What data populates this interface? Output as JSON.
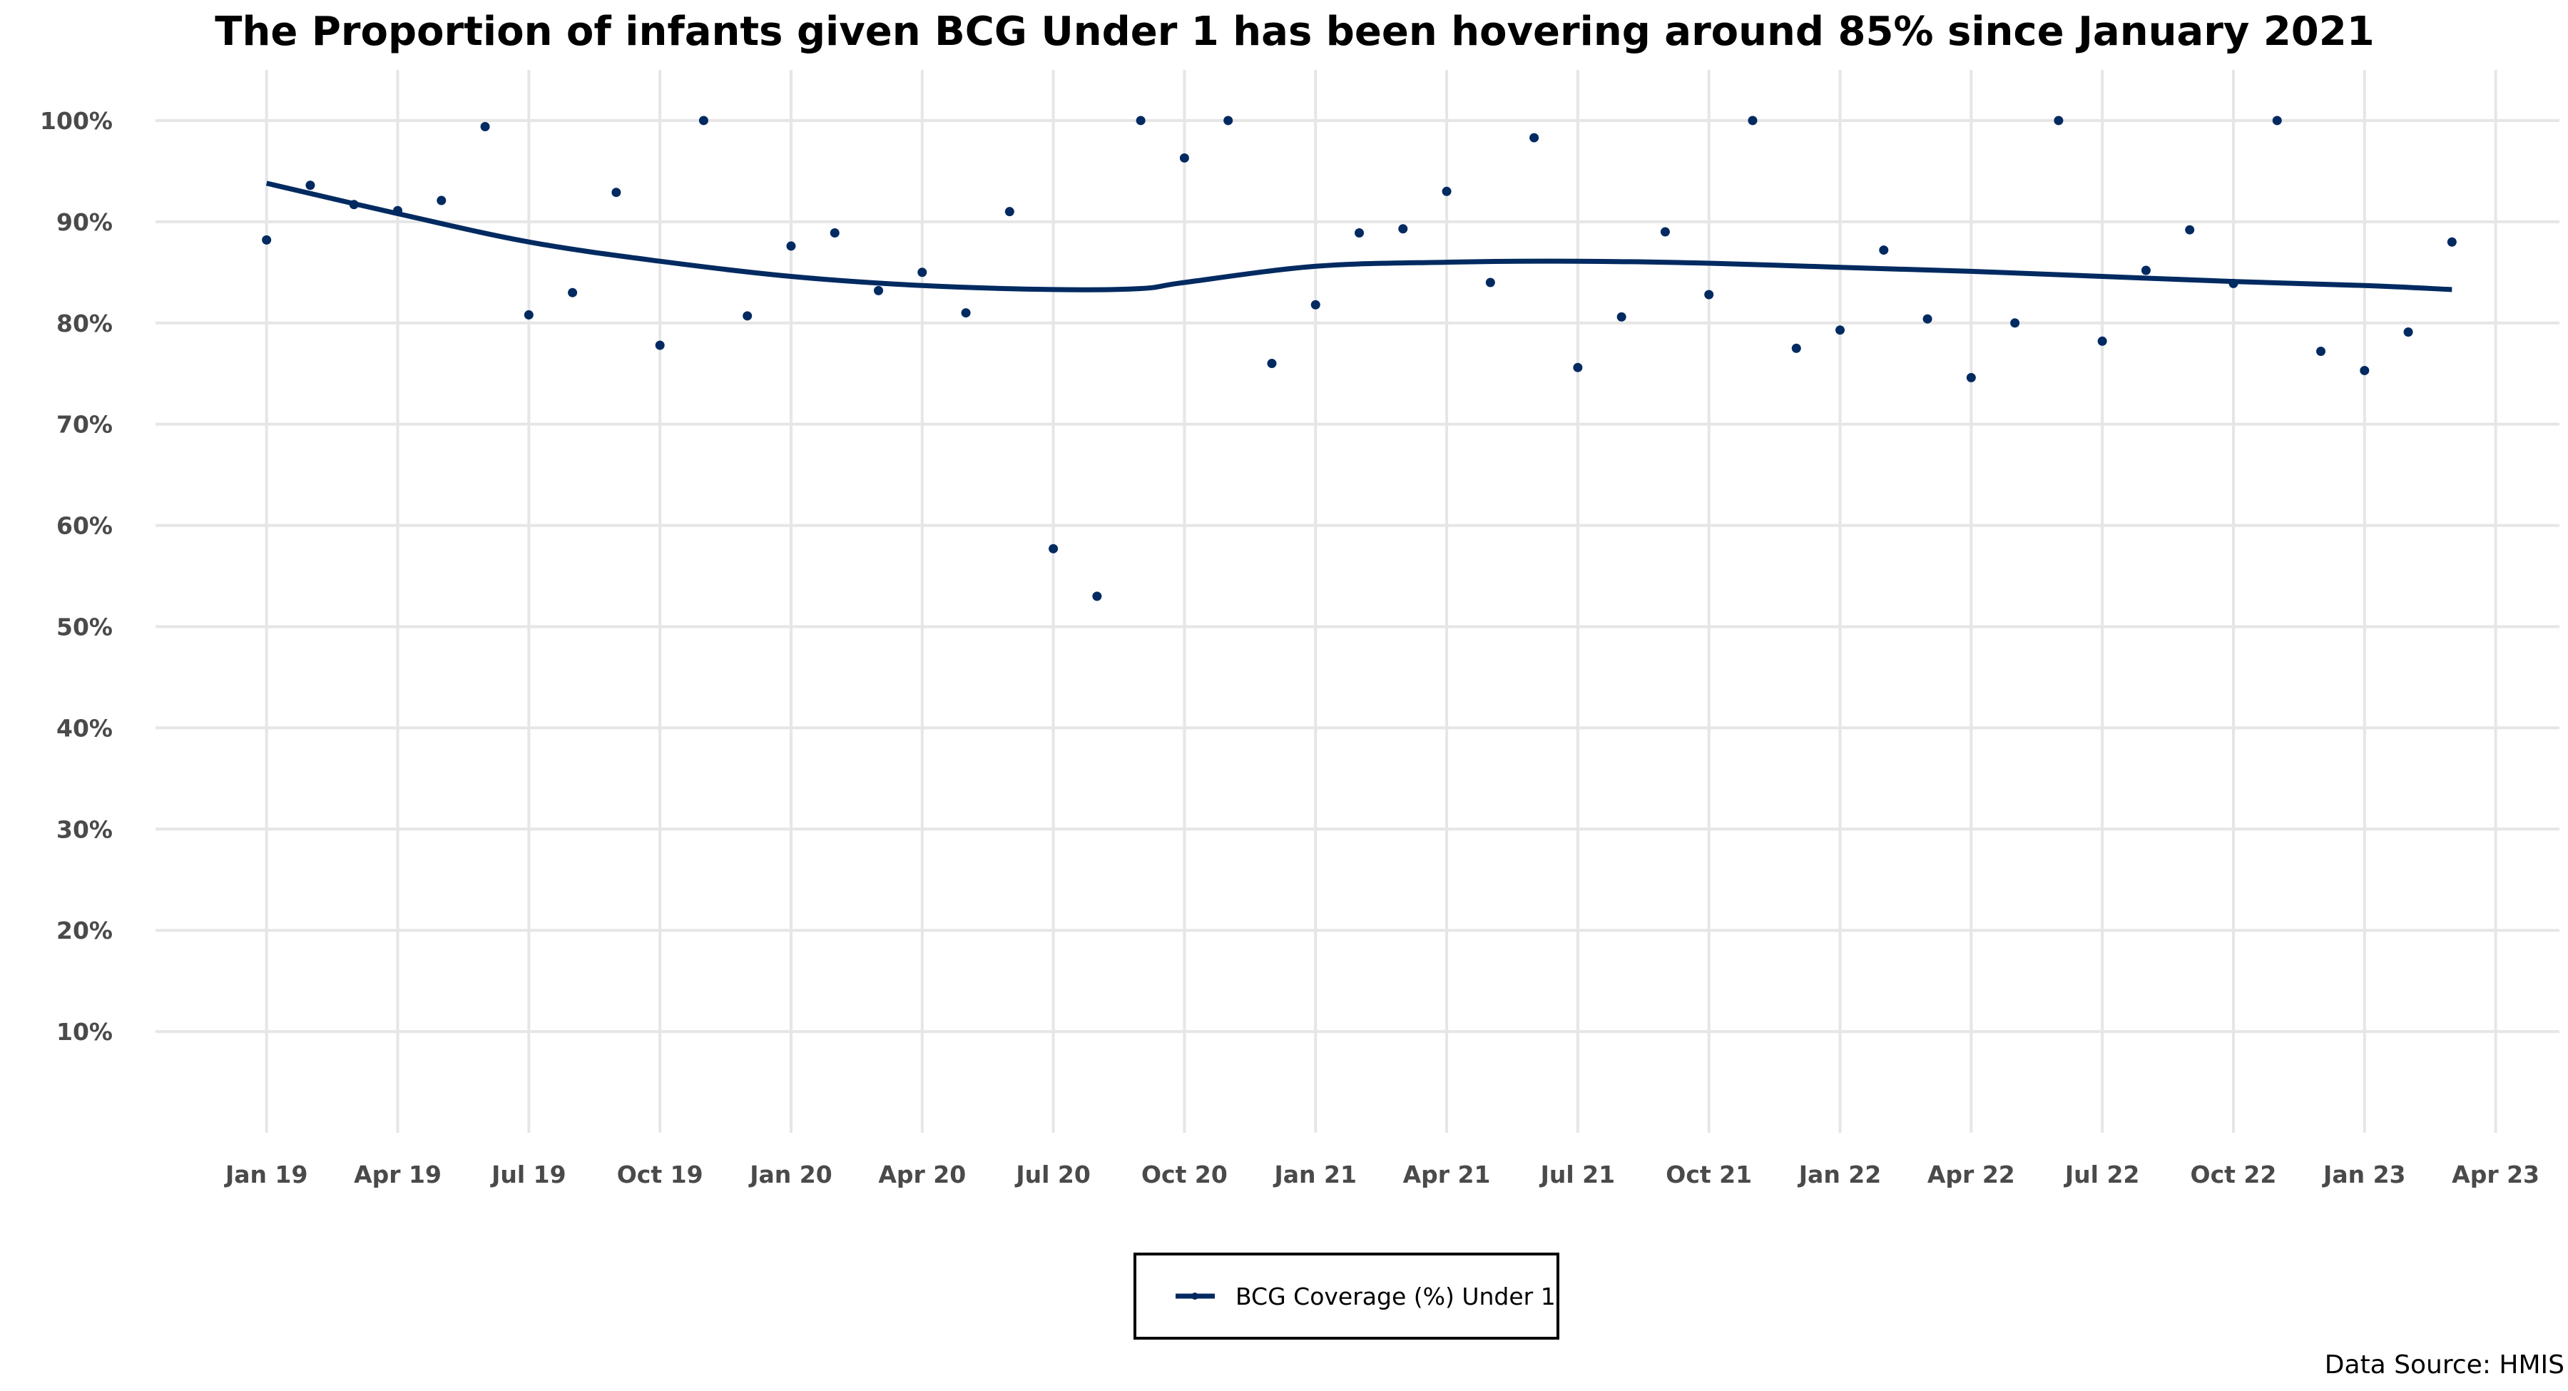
{
  "chart_data": {
    "type": "scatter",
    "title": "The Proportion of infants given BCG Under 1 has been hovering around 85% since January 2021",
    "xlabel": "",
    "ylabel": "",
    "x_tick_labels": [
      "Jan 19",
      "Apr 19",
      "Jul 19",
      "Oct 19",
      "Jan 20",
      "Apr 20",
      "Jul 20",
      "Oct 20",
      "Jan 21",
      "Apr 21",
      "Jul 21",
      "Oct 21",
      "Jan 22",
      "Apr 22",
      "Jul 22",
      "Oct 22",
      "Jan 23",
      "Apr 23"
    ],
    "x_ticks": [
      "2019-01",
      "2019-04",
      "2019-07",
      "2019-10",
      "2020-01",
      "2020-04",
      "2020-07",
      "2020-10",
      "2021-01",
      "2021-04",
      "2021-07",
      "2021-10",
      "2022-01",
      "2022-04",
      "2022-07",
      "2022-10",
      "2023-01",
      "2023-04"
    ],
    "y_tick_labels": [
      "10%",
      "20%",
      "30%",
      "40%",
      "50%",
      "60%",
      "70%",
      "80%",
      "90%",
      "100%"
    ],
    "y_ticks": [
      10,
      20,
      30,
      40,
      50,
      60,
      70,
      80,
      90,
      100
    ],
    "ylim": [
      0,
      105
    ],
    "xlim": [
      "2018-10-15",
      "2023-05-15"
    ],
    "grid": true,
    "legend_position": "bottom",
    "series": [
      {
        "name": "BCG Coverage (%) Under 1",
        "color": "#012a61",
        "points": [
          {
            "x": "2019-01",
            "y": 88.2
          },
          {
            "x": "2019-02",
            "y": 93.6
          },
          {
            "x": "2019-03",
            "y": 91.7
          },
          {
            "x": "2019-04",
            "y": 91.1
          },
          {
            "x": "2019-05",
            "y": 92.1
          },
          {
            "x": "2019-06",
            "y": 99.4
          },
          {
            "x": "2019-07",
            "y": 80.8
          },
          {
            "x": "2019-08",
            "y": 83.0
          },
          {
            "x": "2019-09",
            "y": 92.9
          },
          {
            "x": "2019-10",
            "y": 77.8
          },
          {
            "x": "2019-11",
            "y": 100
          },
          {
            "x": "2019-12",
            "y": 80.7
          },
          {
            "x": "2020-01",
            "y": 87.6
          },
          {
            "x": "2020-02",
            "y": 88.9
          },
          {
            "x": "2020-03",
            "y": 83.2
          },
          {
            "x": "2020-04",
            "y": 85.0
          },
          {
            "x": "2020-05",
            "y": 81.0
          },
          {
            "x": "2020-06",
            "y": 91.0
          },
          {
            "x": "2020-07",
            "y": 57.7
          },
          {
            "x": "2020-08",
            "y": 53.0
          },
          {
            "x": "2020-09",
            "y": 100
          },
          {
            "x": "2020-10",
            "y": 96.3
          },
          {
            "x": "2020-11",
            "y": 100
          },
          {
            "x": "2020-12",
            "y": 76.0
          },
          {
            "x": "2021-01",
            "y": 81.8
          },
          {
            "x": "2021-02",
            "y": 88.9
          },
          {
            "x": "2021-03",
            "y": 89.3
          },
          {
            "x": "2021-04",
            "y": 93.0
          },
          {
            "x": "2021-05",
            "y": 84.0
          },
          {
            "x": "2021-06",
            "y": 98.3
          },
          {
            "x": "2021-07",
            "y": 75.6
          },
          {
            "x": "2021-08",
            "y": 80.6
          },
          {
            "x": "2021-09",
            "y": 89.0
          },
          {
            "x": "2021-10",
            "y": 82.8
          },
          {
            "x": "2021-11",
            "y": 100
          },
          {
            "x": "2021-12",
            "y": 77.5
          },
          {
            "x": "2022-01",
            "y": 79.3
          },
          {
            "x": "2022-02",
            "y": 87.2
          },
          {
            "x": "2022-03",
            "y": 80.4
          },
          {
            "x": "2022-04",
            "y": 74.6
          },
          {
            "x": "2022-05",
            "y": 80.0
          },
          {
            "x": "2022-06",
            "y": 100
          },
          {
            "x": "2022-07",
            "y": 78.2
          },
          {
            "x": "2022-08",
            "y": 85.2
          },
          {
            "x": "2022-09",
            "y": 89.2
          },
          {
            "x": "2022-10",
            "y": 83.9
          },
          {
            "x": "2022-11",
            "y": 100
          },
          {
            "x": "2022-12",
            "y": 77.2
          },
          {
            "x": "2023-01",
            "y": 75.3
          },
          {
            "x": "2023-02",
            "y": 79.1
          },
          {
            "x": "2023-03",
            "y": 88.0
          }
        ]
      }
    ],
    "trend_line": {
      "type": "smoothed",
      "color": "#012a61",
      "points": [
        {
          "x": "2019-01",
          "y": 93.8
        },
        {
          "x": "2019-04",
          "y": 90.8
        },
        {
          "x": "2019-07",
          "y": 88.0
        },
        {
          "x": "2019-10",
          "y": 86.1
        },
        {
          "x": "2020-01",
          "y": 84.6
        },
        {
          "x": "2020-04",
          "y": 83.7
        },
        {
          "x": "2020-07",
          "y": 83.3
        },
        {
          "x": "2020-09",
          "y": 83.4
        },
        {
          "x": "2020-10",
          "y": 84.0
        },
        {
          "x": "2021-01",
          "y": 85.6
        },
        {
          "x": "2021-04",
          "y": 86.0
        },
        {
          "x": "2021-07",
          "y": 86.1
        },
        {
          "x": "2021-10",
          "y": 85.9
        },
        {
          "x": "2022-01",
          "y": 85.5
        },
        {
          "x": "2022-04",
          "y": 85.1
        },
        {
          "x": "2022-07",
          "y": 84.6
        },
        {
          "x": "2022-10",
          "y": 84.1
        },
        {
          "x": "2023-01",
          "y": 83.7
        },
        {
          "x": "2023-03",
          "y": 83.3
        }
      ]
    }
  },
  "legend": {
    "label": "BCG Coverage (%) Under 1"
  },
  "source_note": "Data Source: HMIS"
}
